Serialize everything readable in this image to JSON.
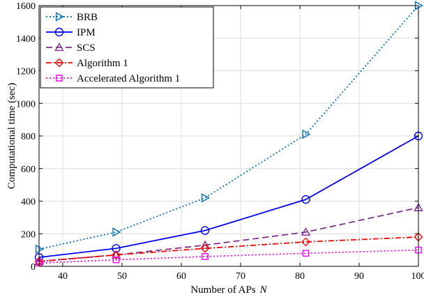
{
  "chart_data": {
    "type": "line",
    "xlabel": "Number of APs",
    "xlabel_var": "N",
    "ylabel": "Computational time (sec)",
    "xlim": [
      36,
      100
    ],
    "ylim": [
      0,
      1600
    ],
    "xticks": [
      40,
      50,
      60,
      70,
      80,
      90,
      100
    ],
    "yticks": [
      0,
      200,
      400,
      600,
      800,
      1000,
      1200,
      1400,
      1600
    ],
    "grid": true,
    "legend_position": "top-left",
    "x": [
      36,
      49,
      64,
      81,
      100
    ],
    "series": [
      {
        "name": "BRB",
        "values": [
          105,
          210,
          420,
          810,
          1600
        ],
        "color": "#0072BD",
        "dash": "2,3",
        "marker": "triangle-right"
      },
      {
        "name": "IPM",
        "values": [
          55,
          110,
          220,
          410,
          800
        ],
        "color": "#0000FF",
        "dash": "",
        "marker": "circle"
      },
      {
        "name": "SCS",
        "values": [
          30,
          70,
          130,
          210,
          360
        ],
        "color": "#7E2F8E",
        "dash": "9,5",
        "marker": "triangle-up"
      },
      {
        "name": "Algorithm 1",
        "values": [
          30,
          70,
          110,
          150,
          180
        ],
        "color": "#FF0000",
        "dash": "8,3,2,3",
        "marker": "diamond"
      },
      {
        "name": "Accelerated Algorithm 1",
        "values": [
          20,
          40,
          60,
          80,
          100
        ],
        "color": "#FF00FF",
        "dash": "2,3",
        "marker": "square"
      }
    ]
  }
}
